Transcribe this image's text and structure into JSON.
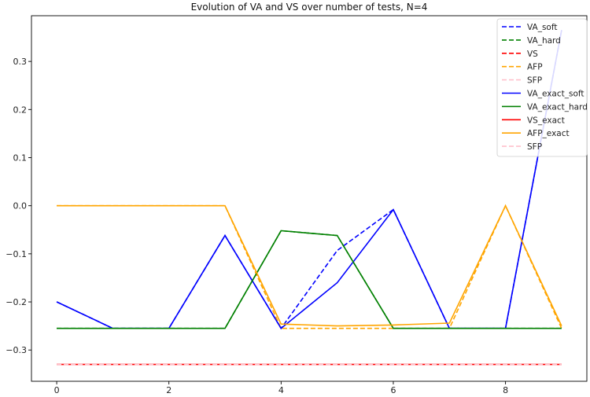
{
  "chart_data": {
    "type": "line",
    "title": "Evolution of VA and VS over number of tests, N=4",
    "xlabel": "",
    "ylabel": "",
    "xlim": [
      -0.45,
      9.45
    ],
    "ylim": [
      -0.365,
      0.395
    ],
    "xticks": [
      0,
      2,
      4,
      6,
      8
    ],
    "yticks": [
      -0.3,
      -0.2,
      -0.1,
      0.0,
      0.1,
      0.2,
      0.3
    ],
    "ytick_labels": [
      "−0.3",
      "−0.2",
      "−0.1",
      "0.0",
      "0.1",
      "0.2",
      "0.3"
    ],
    "legend_position": "top-right",
    "grid": false,
    "x": [
      0,
      1,
      2,
      3,
      4,
      5,
      6,
      7,
      8,
      9
    ],
    "series": [
      {
        "name": "VA_soft",
        "color": "#0000ff",
        "dash": "dashed",
        "values": [
          -0.2,
          -0.255,
          -0.255,
          -0.062,
          -0.255,
          -0.093,
          -0.008,
          -0.255,
          -0.255,
          0.365
        ]
      },
      {
        "name": "VA_hard",
        "color": "#008000",
        "dash": "dashed",
        "values": [
          -0.255,
          -0.255,
          -0.255,
          -0.255,
          -0.052,
          -0.062,
          -0.255,
          -0.255,
          -0.255,
          -0.255
        ]
      },
      {
        "name": "VS",
        "color": "#ff0000",
        "dash": "dashed",
        "values": [
          -0.33,
          -0.33,
          -0.33,
          -0.33,
          -0.33,
          -0.33,
          -0.33,
          -0.33,
          -0.33,
          -0.33
        ]
      },
      {
        "name": "AFP",
        "color": "#ffa500",
        "dash": "dashed",
        "values": [
          0.0,
          0.0,
          0.0,
          0.0,
          -0.255,
          -0.255,
          -0.255,
          -0.255,
          0.0,
          -0.255
        ]
      },
      {
        "name": "SFP",
        "color": "#ffc0cb",
        "dash": "dashed",
        "values": [
          -0.33,
          -0.33,
          -0.33,
          -0.33,
          -0.33,
          -0.33,
          -0.33,
          -0.33,
          -0.33,
          -0.33
        ]
      },
      {
        "name": "VA_exact_soft",
        "color": "#0000ff",
        "dash": "solid",
        "values": [
          -0.2,
          -0.255,
          -0.255,
          -0.062,
          -0.255,
          -0.16,
          -0.008,
          -0.255,
          -0.255,
          0.365
        ]
      },
      {
        "name": "VA_exact_hard",
        "color": "#008000",
        "dash": "solid",
        "values": [
          -0.255,
          -0.255,
          -0.255,
          -0.255,
          -0.052,
          -0.062,
          -0.255,
          -0.255,
          -0.255,
          -0.255
        ]
      },
      {
        "name": "VS_exact",
        "color": "#ff0000",
        "dash": "solid",
        "values": [
          -0.33,
          -0.33,
          -0.33,
          -0.33,
          -0.33,
          -0.33,
          -0.33,
          -0.33,
          -0.33,
          -0.33
        ]
      },
      {
        "name": "AFP_exact",
        "color": "#ffa500",
        "dash": "solid",
        "values": [
          0.0,
          0.0,
          0.0,
          0.0,
          -0.246,
          -0.25,
          -0.248,
          -0.244,
          0.0,
          -0.25
        ]
      },
      {
        "name": "SFP",
        "color": "#ffc0cb",
        "dash": "dashed",
        "values": [
          -0.33,
          -0.33,
          -0.33,
          -0.33,
          -0.33,
          -0.33,
          -0.33,
          -0.33,
          -0.33,
          -0.33
        ]
      }
    ]
  }
}
